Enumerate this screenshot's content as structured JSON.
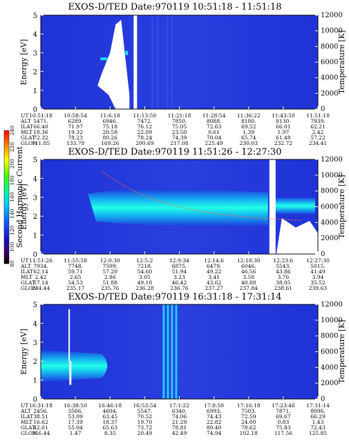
{
  "chart_data": [
    {
      "type": "heatmap",
      "title": "EXOS-D/TED   Date:970119  10:51:18 - 11:51:18",
      "ylabel": "Energy [eV]",
      "y2label": "Temperature [K]",
      "ylim": [
        0,
        5
      ],
      "y2lim": [
        0,
        12000
      ],
      "yticks": [
        "0",
        "1",
        "2",
        "3",
        "4",
        "5"
      ],
      "y2ticks": [
        "0",
        "2000",
        "4000",
        "6000",
        "8000",
        "10000",
        "12000"
      ],
      "table": {
        "row_labels": [
          "UT",
          "ALT",
          "ILAT",
          "MLT",
          "GLAT",
          "GLON"
        ],
        "columns": [
          [
            "10:51:18",
            "5471.",
            "66.40",
            "18.36",
            "72.32",
            "111.85"
          ],
          [
            "10:58:54",
            "6289.",
            "71.97",
            "19.32",
            "78.23",
            "133.78"
          ],
          [
            "11:6:18",
            "6946.",
            "75.18",
            "20.58",
            "80.26",
            "169.26"
          ],
          [
            "11:13:50",
            "7472.",
            "76.12",
            "22.09",
            "78.24",
            "200.69"
          ],
          [
            "11:21:18",
            "7850.",
            "75.05",
            "23.50",
            "74.39",
            "217.08"
          ],
          [
            "11:28:54",
            "8088.",
            "72.63",
            "0.61",
            "70.04",
            "225.49"
          ],
          [
            "11:36:22",
            "8180.",
            "69.52",
            "1.39",
            "65.74",
            "230.03"
          ],
          [
            "11:43:50",
            "8130.",
            "66.01",
            "1.97",
            "61.48",
            "232.72"
          ],
          [
            "11:51:18",
            "7939.",
            "62.21",
            "2.42",
            "57.22",
            "234.41"
          ]
        ]
      }
    },
    {
      "type": "heatmap",
      "title": "EXOS-D/TED   Date:970119  11:51:26 - 12:27:30",
      "ylabel": "Energy [eV]",
      "y2label": "Temperature [K]",
      "ylim": [
        0,
        5
      ],
      "y2lim": [
        0,
        12000
      ],
      "yticks": [
        "0",
        "1",
        "2",
        "3",
        "4",
        "5"
      ],
      "y2ticks": [
        "0",
        "2000",
        "4000",
        "6000",
        "8000",
        "10000",
        "12000"
      ],
      "colorbar": {
        "label": "Second Harmonic Current",
        "ticks": [
          "80",
          "100",
          "120",
          "140",
          "160",
          "180",
          "200",
          "220",
          "240"
        ]
      },
      "table": {
        "row_labels": [
          "UT",
          "ALT",
          "ILAT",
          "MLT",
          "GLAT",
          "GLON"
        ],
        "columns": [
          [
            "11:51:26",
            "7934.",
            "62.14",
            "2.42",
            "57.14",
            "234.44"
          ],
          [
            "11:55:58",
            "7748.",
            "59.71",
            "2.65",
            "54.53",
            "235.17"
          ],
          [
            "12:0:30",
            "7509.",
            "57.20",
            "2.86",
            "51.88",
            "235.76"
          ],
          [
            "12:5:2",
            "7218.",
            "54.60",
            "3.05",
            "49.18",
            "236.28"
          ],
          [
            "12:9:34",
            "6875.",
            "51.94",
            "3.23",
            "46.42",
            "236.76"
          ],
          [
            "12:14:6",
            "6479.",
            "49.22",
            "3.41",
            "43.62",
            "237.27"
          ],
          [
            "12:18:30",
            "6046.",
            "46.56",
            "3.58",
            "40.88",
            "237.84"
          ],
          [
            "12:23:6",
            "5543.",
            "43.86",
            "3.76",
            "38.05",
            "238.61"
          ],
          [
            "12:27:30",
            "5015.",
            "41.49",
            "3.94",
            "35.52",
            "239.63"
          ]
        ]
      }
    },
    {
      "type": "heatmap",
      "title": "EXOS-D/TED   Date:970119  16:31:18 - 17:31:14",
      "ylabel": "Energy [eV]",
      "y2label": "Temperature [K]",
      "ylim": [
        0,
        5
      ],
      "y2lim": [
        0,
        12000
      ],
      "yticks": [
        "0",
        "1",
        "2",
        "3",
        "4",
        "5"
      ],
      "y2ticks": [
        "0",
        "2000",
        "4000",
        "6000",
        "8000",
        "10000",
        "12000"
      ],
      "table": {
        "row_labels": [
          "UT",
          "ALT",
          "ILAT",
          "MLT",
          "GLAT",
          "GLON"
        ],
        "columns": [
          [
            "16:31:18",
            "2456.",
            "38.51",
            "16.62",
            "42.01",
            "356.44"
          ],
          [
            "16:38:50",
            "3566.",
            "53.09",
            "17.39",
            "55.04",
            "1.47"
          ],
          [
            "16:46:18",
            "4604.",
            "63.45",
            "18.37",
            "65.63",
            "8.35"
          ],
          [
            "16:53:54",
            "5547.",
            "70.52",
            "19.70",
            "73.72",
            "20.49"
          ],
          [
            "17:1:22",
            "6340.",
            "74.06",
            "21.29",
            "78.81",
            "42.49"
          ],
          [
            "17:8:50",
            "6993.",
            "74.43",
            "22.82",
            "80.40",
            "74.94"
          ],
          [
            "17:16:18",
            "7503.",
            "72.59",
            "24.00",
            "78.62",
            "102.18"
          ],
          [
            "17:23:46",
            "7871.",
            "69.67",
            "0.83",
            "75.83",
            "117.56"
          ],
          [
            "17:31:14",
            "8096.",
            "66.29",
            "1.43",
            "72.43",
            "125.85"
          ]
        ]
      }
    }
  ]
}
